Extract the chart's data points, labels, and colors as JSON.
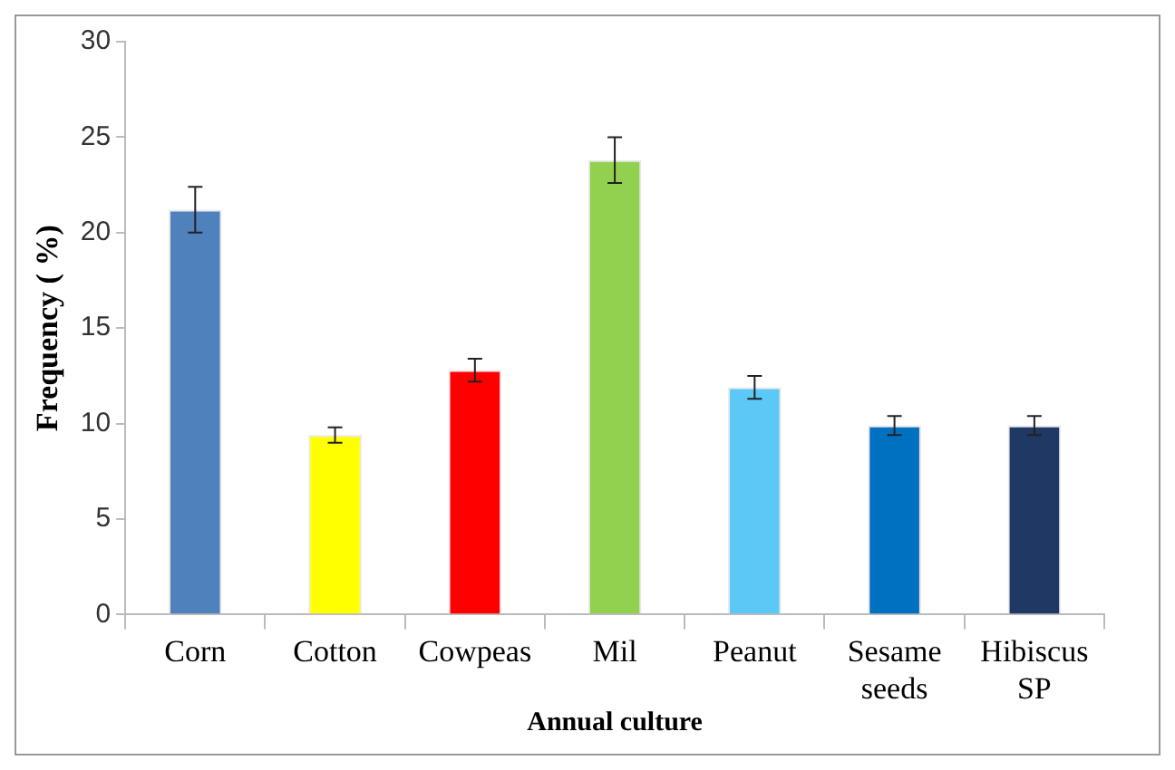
{
  "chart_data": {
    "type": "bar",
    "xlabel": "Annual culture",
    "ylabel": "Frequency ( %)",
    "categories": [
      "Corn",
      "Cotton",
      "Cowpeas",
      "Mil",
      "Peanut",
      "Sesame seeds",
      "Hibiscus SP"
    ],
    "values": [
      21.2,
      9.4,
      12.8,
      23.8,
      11.9,
      9.9,
      9.9
    ],
    "errors": [
      1.2,
      0.4,
      0.6,
      1.2,
      0.6,
      0.5,
      0.5
    ],
    "colors": [
      "#4f81bd",
      "#ffff00",
      "#ff0000",
      "#92d050",
      "#5bc8f5",
      "#0070c0",
      "#1f3864"
    ],
    "ylim": [
      0,
      30
    ],
    "yticks": [
      0,
      5,
      10,
      15,
      20,
      25,
      30
    ],
    "grid": false,
    "legend": false
  }
}
